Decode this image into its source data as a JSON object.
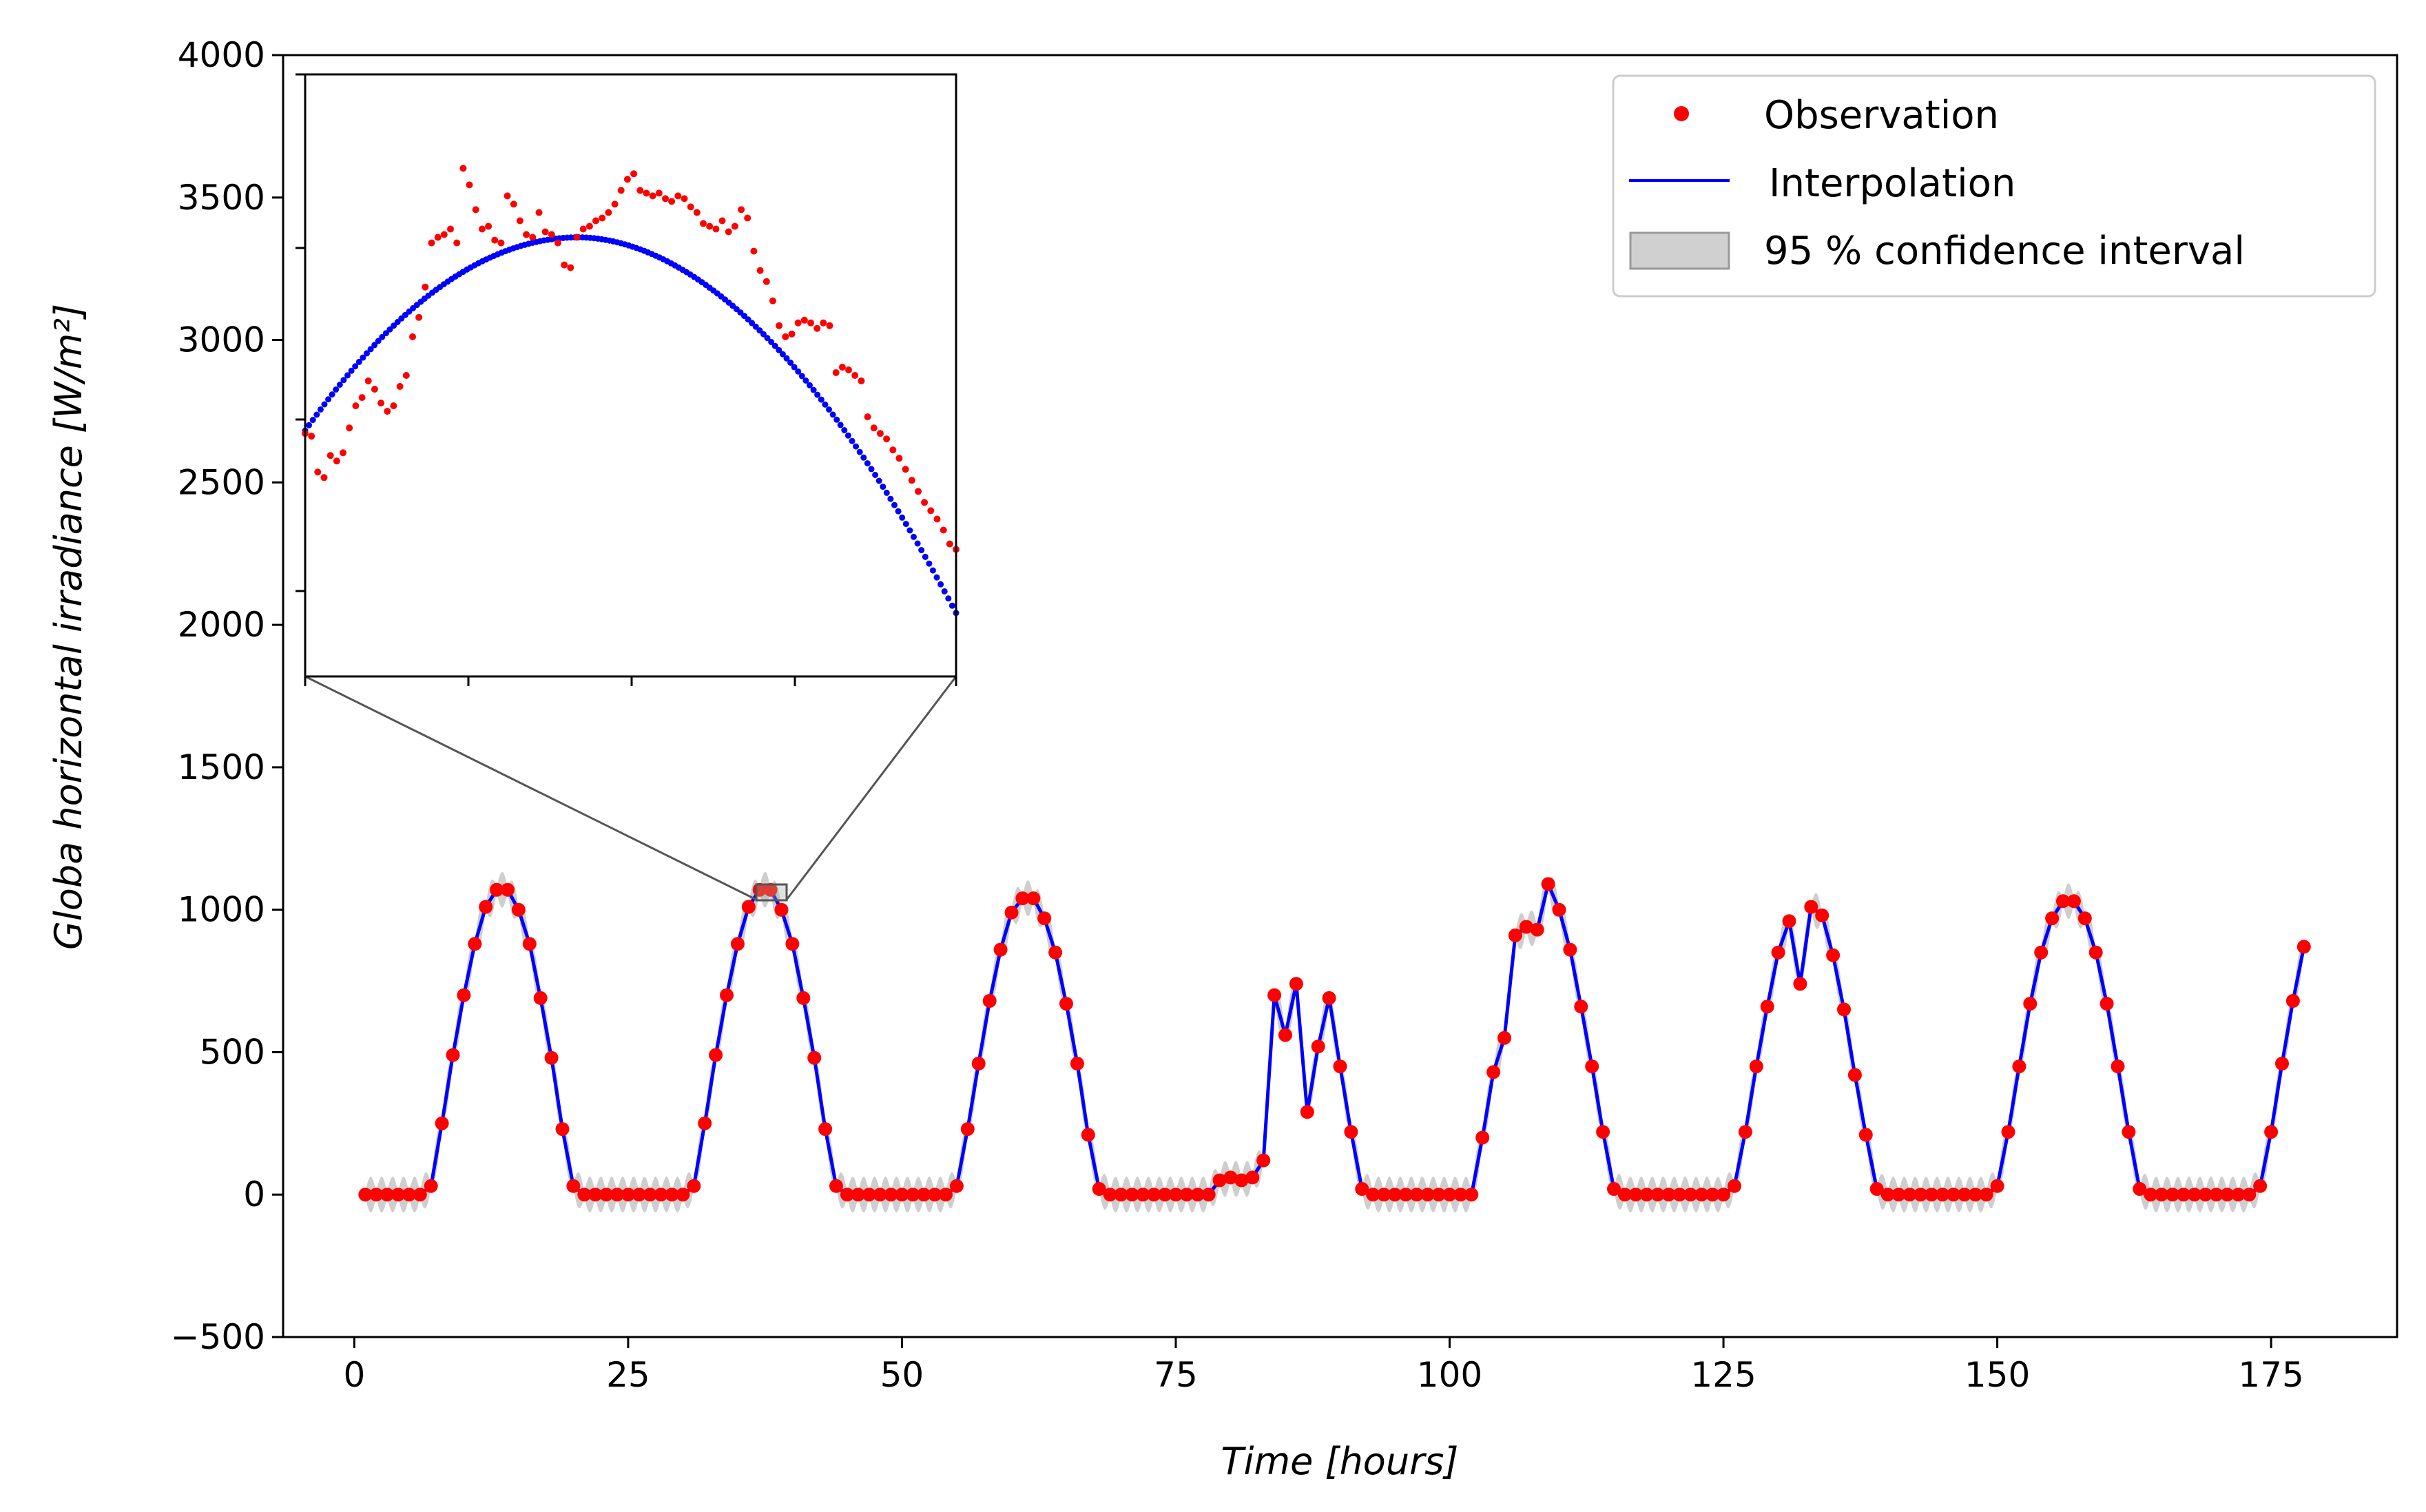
{
  "chart_data": {
    "type": "line",
    "xlabel": "Time [hours]",
    "ylabel": "Globa horizontal irradiance [W/m²]",
    "xlim": [
      -6.5,
      186.5
    ],
    "ylim": [
      -500,
      4000
    ],
    "xticks": [
      0,
      25,
      50,
      75,
      100,
      125,
      150,
      175
    ],
    "yticks": [
      -500,
      0,
      500,
      1000,
      1500,
      2000,
      2500,
      3000,
      3500,
      4000
    ],
    "xtick_labels": [
      "0",
      "25",
      "50",
      "75",
      "100",
      "125",
      "150",
      "175"
    ],
    "ytick_labels": [
      "−500",
      "0",
      "500",
      "1000",
      "1500",
      "2000",
      "2500",
      "3000",
      "3500",
      "4000"
    ],
    "grid": false,
    "legend_position": "top-right",
    "legend": {
      "observation": "Observation",
      "interpolation": "Interpolation",
      "ci": "95 % confidence interval"
    },
    "colors": {
      "observation": "#ff0000",
      "interpolation": "#0000ff",
      "ci_fill": "#bdbdbd",
      "connector": "#555555"
    },
    "series": [
      {
        "name": "Observation",
        "x": [
          1,
          2,
          3,
          4,
          5,
          6,
          7,
          8,
          9,
          10,
          11,
          12,
          13,
          14,
          15,
          16,
          17,
          18,
          19,
          20,
          21,
          22,
          23,
          24,
          25,
          26,
          27,
          28,
          29,
          30,
          31,
          32,
          33,
          34,
          35,
          36,
          37,
          38,
          39,
          40,
          41,
          42,
          43,
          44,
          45,
          46,
          47,
          48,
          49,
          50,
          51,
          52,
          53,
          54,
          55,
          56,
          57,
          58,
          59,
          60,
          61,
          62,
          63,
          64,
          65,
          66,
          67,
          68,
          69,
          70,
          71,
          72,
          73,
          74,
          75,
          76,
          77,
          78,
          79,
          80,
          81,
          82,
          83,
          84,
          85,
          86,
          87,
          88,
          89,
          90,
          91,
          92,
          93,
          94,
          95,
          96,
          97,
          98,
          99,
          100,
          101,
          102,
          103,
          104,
          105,
          106,
          107,
          108,
          109,
          110,
          111,
          112,
          113,
          114,
          115,
          116,
          117,
          118,
          119,
          120,
          121,
          122,
          123,
          124,
          125,
          126,
          127,
          128,
          129,
          130,
          131,
          132,
          133,
          134,
          135,
          136,
          137,
          138,
          139,
          140,
          141,
          142,
          143,
          144,
          145,
          146,
          147,
          148,
          149,
          150,
          151,
          152,
          153,
          154,
          155,
          156,
          157,
          158,
          159,
          160,
          161,
          162,
          163,
          164,
          165,
          166,
          167,
          168,
          169,
          170,
          171,
          172,
          173,
          174,
          175,
          176,
          177,
          178
        ],
        "y": [
          0,
          0,
          0,
          0,
          0,
          0,
          30,
          250,
          490,
          700,
          880,
          1010,
          1070,
          1070,
          1000,
          880,
          690,
          480,
          230,
          30,
          0,
          0,
          0,
          0,
          0,
          0,
          0,
          0,
          0,
          0,
          30,
          250,
          490,
          700,
          880,
          1010,
          1070,
          1070,
          1000,
          880,
          690,
          480,
          230,
          30,
          0,
          0,
          0,
          0,
          0,
          0,
          0,
          0,
          0,
          0,
          30,
          230,
          460,
          680,
          860,
          990,
          1040,
          1040,
          970,
          850,
          670,
          460,
          210,
          20,
          0,
          0,
          0,
          0,
          0,
          0,
          0,
          0,
          0,
          0,
          50,
          60,
          50,
          60,
          120,
          700,
          560,
          740,
          290,
          520,
          690,
          450,
          220,
          20,
          0,
          0,
          0,
          0,
          0,
          0,
          0,
          0,
          0,
          0,
          200,
          430,
          550,
          910,
          940,
          930,
          1090,
          1000,
          860,
          660,
          450,
          220,
          20,
          0,
          0,
          0,
          0,
          0,
          0,
          0,
          0,
          0,
          0,
          30,
          220,
          450,
          660,
          850,
          960,
          740,
          1010,
          980,
          840,
          650,
          420,
          210,
          20,
          0,
          0,
          0,
          0,
          0,
          0,
          0,
          0,
          0,
          0,
          30,
          220,
          450,
          670,
          850,
          970,
          1030,
          1030,
          970,
          850,
          670,
          450,
          220,
          20,
          0,
          0,
          0,
          0,
          0,
          0,
          0,
          0,
          0,
          0,
          30,
          220,
          460,
          680,
          870
        ]
      },
      {
        "name": "Interpolation",
        "x": [
          1,
          2,
          3,
          4,
          5,
          6,
          7,
          8,
          9,
          10,
          11,
          12,
          13,
          14,
          15,
          16,
          17,
          18,
          19,
          20,
          21,
          22,
          23,
          24,
          25,
          26,
          27,
          28,
          29,
          30,
          31,
          32,
          33,
          34,
          35,
          36,
          37,
          38,
          39,
          40,
          41,
          42,
          43,
          44,
          45,
          46,
          47,
          48,
          49,
          50,
          51,
          52,
          53,
          54,
          55,
          56,
          57,
          58,
          59,
          60,
          61,
          62,
          63,
          64,
          65,
          66,
          67,
          68,
          69,
          70,
          71,
          72,
          73,
          74,
          75,
          76,
          77,
          78,
          79,
          80,
          81,
          82,
          83,
          84,
          85,
          86,
          87,
          88,
          89,
          90,
          91,
          92,
          93,
          94,
          95,
          96,
          97,
          98,
          99,
          100,
          101,
          102,
          103,
          104,
          105,
          106,
          107,
          108,
          109,
          110,
          111,
          112,
          113,
          114,
          115,
          116,
          117,
          118,
          119,
          120,
          121,
          122,
          123,
          124,
          125,
          126,
          127,
          128,
          129,
          130,
          131,
          132,
          133,
          134,
          135,
          136,
          137,
          138,
          139,
          140,
          141,
          142,
          143,
          144,
          145,
          146,
          147,
          148,
          149,
          150,
          151,
          152,
          153,
          154,
          155,
          156,
          157,
          158,
          159,
          160,
          161,
          162,
          163,
          164,
          165,
          166,
          167,
          168,
          169,
          170,
          171,
          172,
          173,
          174,
          175,
          176,
          177,
          178
        ],
        "y": [
          0,
          0,
          0,
          0,
          0,
          0,
          30,
          250,
          490,
          700,
          880,
          1010,
          1070,
          1070,
          1000,
          880,
          690,
          480,
          230,
          30,
          0,
          0,
          0,
          0,
          0,
          0,
          0,
          0,
          0,
          0,
          30,
          250,
          490,
          700,
          880,
          1010,
          1070,
          1070,
          1000,
          880,
          690,
          480,
          230,
          30,
          0,
          0,
          0,
          0,
          0,
          0,
          0,
          0,
          0,
          0,
          30,
          230,
          460,
          680,
          860,
          990,
          1040,
          1040,
          970,
          850,
          670,
          460,
          210,
          20,
          0,
          0,
          0,
          0,
          0,
          0,
          0,
          0,
          0,
          0,
          50,
          60,
          50,
          60,
          120,
          700,
          560,
          740,
          290,
          520,
          690,
          450,
          220,
          20,
          0,
          0,
          0,
          0,
          0,
          0,
          0,
          0,
          0,
          0,
          200,
          430,
          550,
          910,
          940,
          930,
          1090,
          1000,
          860,
          660,
          450,
          220,
          20,
          0,
          0,
          0,
          0,
          0,
          0,
          0,
          0,
          0,
          0,
          30,
          220,
          450,
          660,
          850,
          960,
          740,
          1010,
          980,
          840,
          650,
          420,
          210,
          20,
          0,
          0,
          0,
          0,
          0,
          0,
          0,
          0,
          0,
          0,
          30,
          220,
          450,
          670,
          850,
          970,
          1030,
          1030,
          970,
          850,
          670,
          450,
          220,
          20,
          0,
          0,
          0,
          0,
          0,
          0,
          0,
          0,
          0,
          0,
          30,
          220,
          460,
          680,
          870
        ]
      }
    ],
    "confidence_interval": {
      "half_width": 55,
      "ripple_period_hours": 1
    },
    "inset": {
      "zoom_x_range": [
        36.4,
        38.6
      ],
      "zoom_y_range": [
        1030,
        1085
      ],
      "observation_y": [
        2700,
        2690,
        2560,
        2540,
        2620,
        2600,
        2630,
        2720,
        2800,
        2830,
        2890,
        2860,
        2810,
        2780,
        2800,
        2870,
        2910,
        3050,
        3120,
        3230,
        3390,
        3410,
        3420,
        3440,
        3390,
        3660,
        3600,
        3510,
        3440,
        3450,
        3400,
        3390,
        3560,
        3530,
        3470,
        3420,
        3410,
        3500,
        3430,
        3420,
        3390,
        3310,
        3300,
        3410,
        3440,
        3450,
        3470,
        3480,
        3500,
        3530,
        3580,
        3620,
        3640,
        3580,
        3570,
        3560,
        3570,
        3550,
        3540,
        3560,
        3550,
        3520,
        3500,
        3460,
        3450,
        3440,
        3470,
        3430,
        3450,
        3510,
        3480,
        3360,
        3290,
        3250,
        3180,
        3090,
        3050,
        3060,
        3100,
        3110,
        3100,
        3080,
        3100,
        3090,
        2920,
        2940,
        2930,
        2910,
        2890,
        2760,
        2720,
        2700,
        2680,
        2640,
        2610,
        2570,
        2530,
        2490,
        2450,
        2420,
        2390,
        2350,
        2300,
        2280
      ],
      "interpolation_y_start": 2710,
      "interpolation_y_peak": 3410,
      "interpolation_peak_frac": 0.42,
      "interpolation_y_end": 2050,
      "interpolation_points": 170
    }
  }
}
